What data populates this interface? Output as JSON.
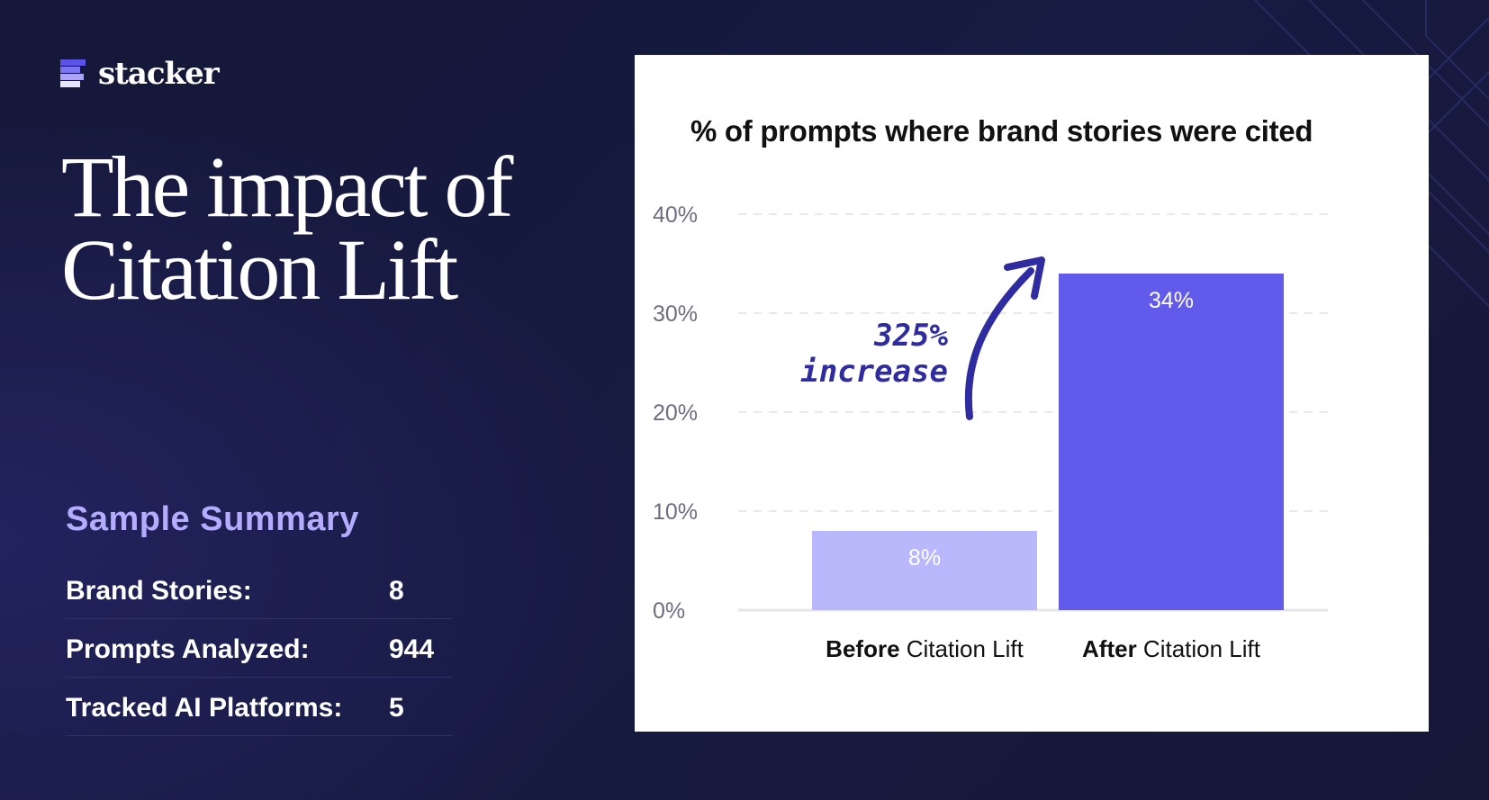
{
  "brand": {
    "name": "stacker"
  },
  "headline": {
    "line1": "The impact of",
    "line2": "Citation Lift"
  },
  "summary": {
    "title": "Sample Summary",
    "rows": [
      {
        "label": "Brand Stories:",
        "value": "8"
      },
      {
        "label": "Prompts Analyzed:",
        "value": "944"
      },
      {
        "label": "Tracked AI Platforms:",
        "value": "5"
      }
    ]
  },
  "colors": {
    "before": "#bab8fd",
    "after": "#625aeb",
    "annotation": "#2e2ca0"
  },
  "chart_data": {
    "type": "bar",
    "title": "% of prompts where brand stories were cited",
    "categories": [
      {
        "bold": "Before",
        "rest": " Citation Lift"
      },
      {
        "bold": "After",
        "rest": " Citation Lift"
      }
    ],
    "values": [
      8,
      34
    ],
    "data_labels": [
      "8%",
      "34%"
    ],
    "yticks": [
      "0%",
      "10%",
      "20%",
      "30%",
      "40%"
    ],
    "ylim": [
      0,
      40
    ],
    "grid": true,
    "annotation": {
      "line1": "325%",
      "line2": "increase"
    }
  }
}
